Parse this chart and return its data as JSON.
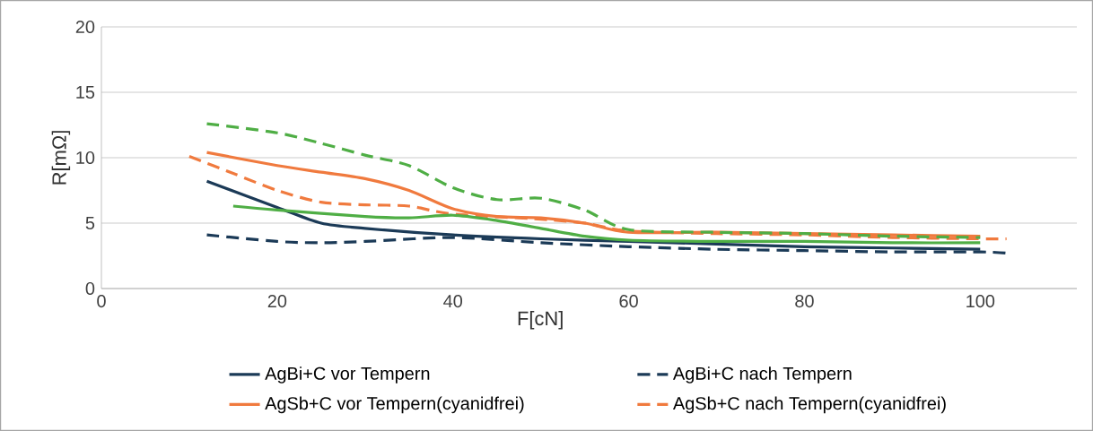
{
  "chart_data": {
    "type": "line",
    "xlabel": "F[cN]",
    "ylabel": "R[mΩ]",
    "xlim": [
      0,
      111
    ],
    "xticks": [
      0,
      20,
      40,
      60,
      80,
      100
    ],
    "ylim": [
      0,
      20
    ],
    "yticks": [
      0,
      5,
      10,
      15,
      20
    ],
    "grid": "y",
    "legend": "bottom",
    "marker": "none",
    "series": [
      {
        "name": "AgBi+C vor Tempern",
        "color": "#1b3a57",
        "line_style": "solid",
        "x": [
          12,
          20,
          25,
          30,
          40,
          50,
          60,
          70,
          80,
          90,
          100
        ],
        "values": [
          8.2,
          6.2,
          5.0,
          4.6,
          4.1,
          3.8,
          3.6,
          3.4,
          3.2,
          3.1,
          3.0
        ]
      },
      {
        "name": "AgBi+C nach Tempern",
        "color": "#1b3a57",
        "line_style": "dashed",
        "x": [
          12,
          20,
          25,
          30,
          40,
          50,
          60,
          70,
          80,
          90,
          100,
          103
        ],
        "values": [
          4.1,
          3.6,
          3.5,
          3.6,
          3.9,
          3.5,
          3.2,
          3.0,
          2.9,
          2.8,
          2.8,
          2.7
        ]
      },
      {
        "name": "AgSb+C vor Tempern(cyanidfrei)",
        "color": "#f07a3e",
        "line_style": "solid",
        "x": [
          12,
          20,
          25,
          30,
          35,
          40,
          45,
          50,
          55,
          60,
          70,
          80,
          90,
          100
        ],
        "values": [
          10.4,
          9.4,
          8.9,
          8.4,
          7.5,
          6.1,
          5.5,
          5.4,
          5.0,
          4.3,
          4.3,
          4.2,
          4.1,
          4.0
        ]
      },
      {
        "name": "AgSb+C nach Tempern(cyanidfrei)",
        "color": "#f07a3e",
        "line_style": "dashed",
        "x": [
          10,
          15,
          20,
          25,
          30,
          35,
          40,
          50,
          55,
          60,
          70,
          80,
          90,
          100,
          103
        ],
        "values": [
          10.1,
          8.8,
          7.5,
          6.6,
          6.4,
          6.3,
          5.7,
          5.3,
          5.0,
          4.4,
          4.2,
          4.1,
          3.9,
          3.8,
          3.8
        ]
      },
      {
        "color": "#4fae45",
        "line_style": "solid",
        "x": [
          15,
          20,
          30,
          35,
          40,
          45,
          50,
          55,
          60,
          70,
          80,
          90,
          100
        ],
        "values": [
          6.3,
          6.0,
          5.5,
          5.4,
          5.6,
          5.2,
          4.6,
          4.0,
          3.7,
          3.6,
          3.6,
          3.5,
          3.5
        ]
      },
      {
        "color": "#4fae45",
        "line_style": "dashed",
        "x": [
          12,
          20,
          25,
          30,
          35,
          40,
          45,
          50,
          55,
          60,
          70,
          80,
          90,
          100
        ],
        "values": [
          12.6,
          11.9,
          11.1,
          10.2,
          9.4,
          7.7,
          6.8,
          6.9,
          6.0,
          4.5,
          4.3,
          4.2,
          4.0,
          3.9
        ]
      }
    ]
  }
}
